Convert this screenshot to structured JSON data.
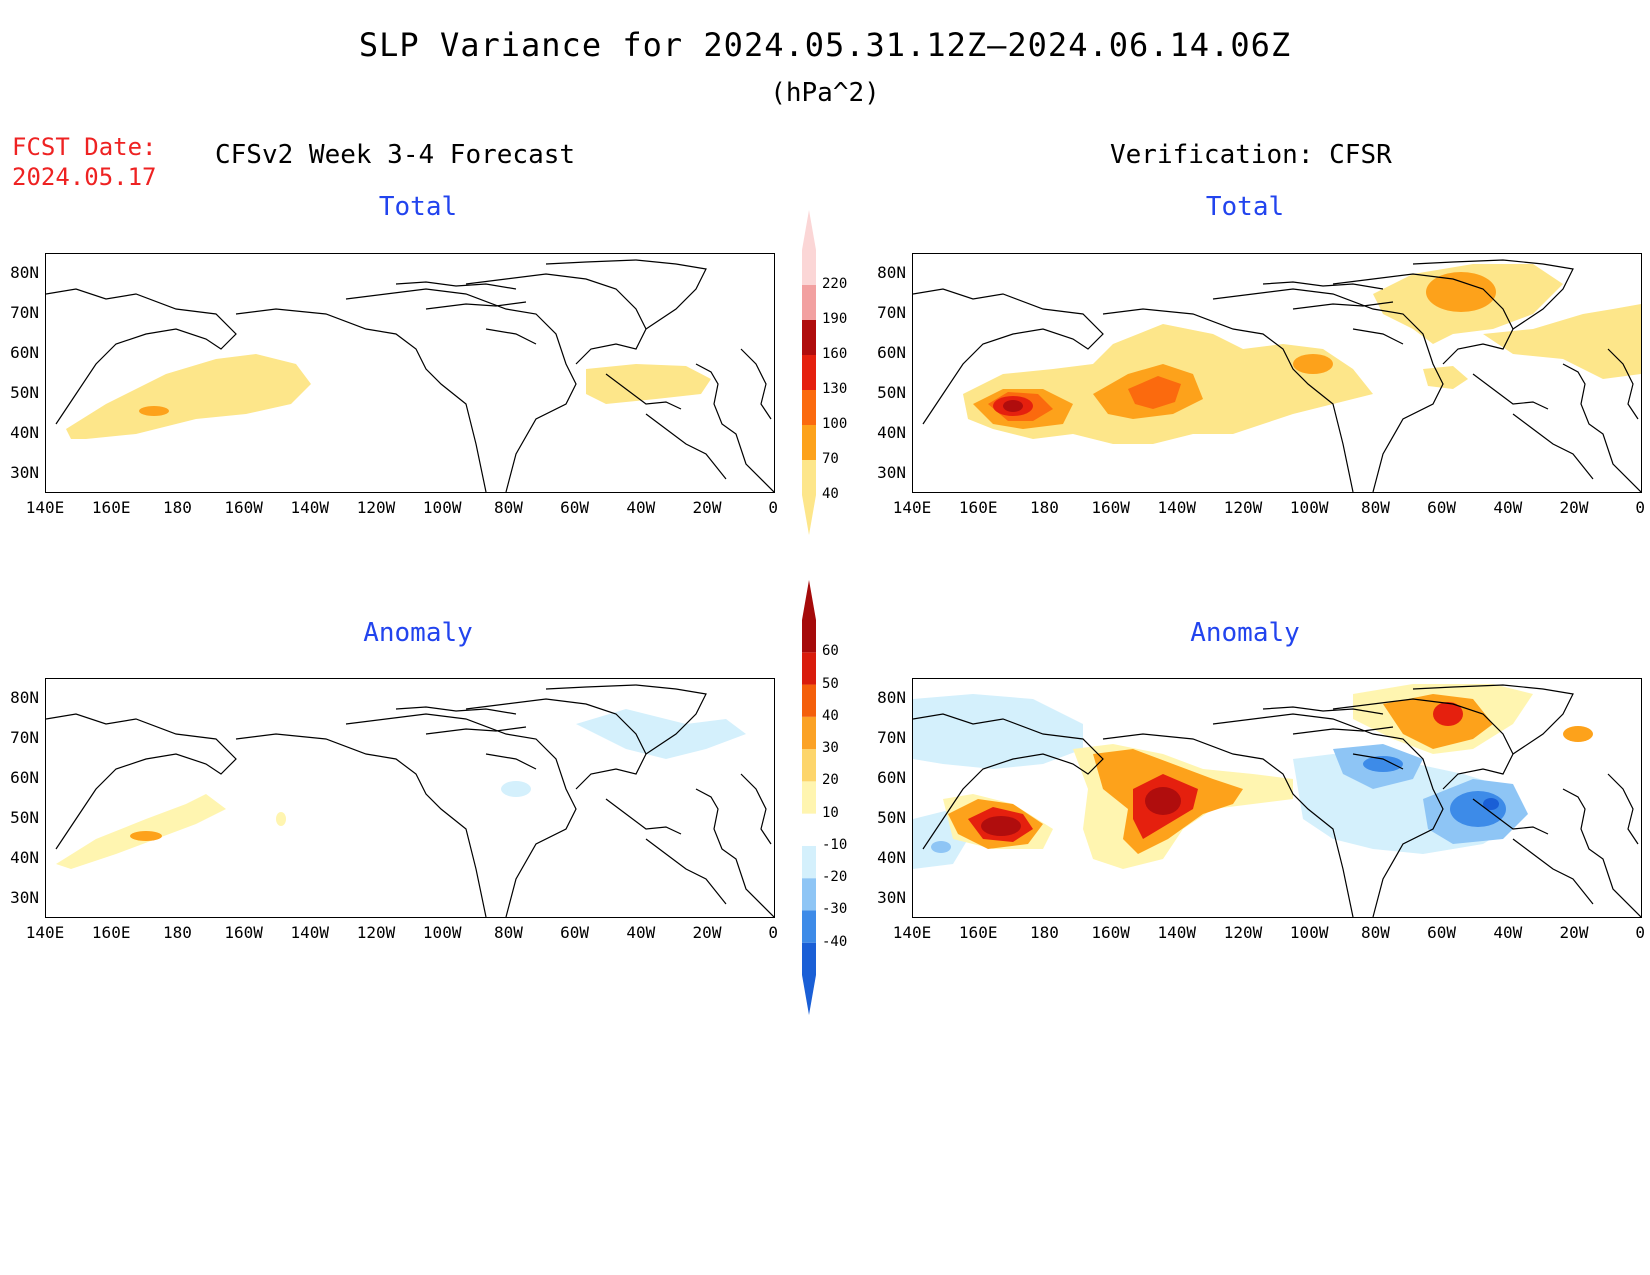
{
  "header": {
    "title": "SLP Variance for 2024.05.31.12Z—2024.06.14.06Z",
    "units": "(hPa^2)",
    "fcst_date_label": "FCST Date:",
    "fcst_date_value": "2024.05.17",
    "left_column_title": "CFSv2 Week 3-4 Forecast",
    "right_column_title": "Verification: CFSR"
  },
  "panels": {
    "top_left_title": "Total",
    "top_right_title": "Total",
    "bottom_left_title": "Anomaly",
    "bottom_right_title": "Anomaly"
  },
  "axes": {
    "lon_labels": [
      "140E",
      "160E",
      "180",
      "160W",
      "140W",
      "120W",
      "100W",
      "80W",
      "60W",
      "40W",
      "20W",
      "0"
    ],
    "lat_labels": [
      "80N",
      "70N",
      "60N",
      "50N",
      "40N",
      "30N"
    ]
  },
  "colorbars": {
    "total": {
      "labels": [
        "40",
        "70",
        "100",
        "130",
        "160",
        "190",
        "220"
      ],
      "colors": [
        "#fde68a",
        "#fda21b",
        "#fb6a0e",
        "#e5200e",
        "#b00d0d",
        "#f2a0a0",
        "#fbd6d6"
      ]
    },
    "anomaly": {
      "labels": [
        "-40",
        "-30",
        "-20",
        "-10",
        "10",
        "20",
        "30",
        "40",
        "50",
        "60"
      ],
      "colors": [
        "#1a5fd6",
        "#3d8be8",
        "#8ec5f5",
        "#d4f0fc",
        "#ffffff",
        "#fff5b0",
        "#fdd56b",
        "#fba226",
        "#f45f0b",
        "#d91c0c",
        "#a50a0a"
      ]
    }
  },
  "map_colors": {
    "yellow": "#fde68a",
    "orange": "#fda21b",
    "dark_orange": "#fb6a0e",
    "red": "#e5200e",
    "dark_red": "#b00d0d",
    "pale_yellow": "#fff5b0",
    "light_cyan": "#d4f0fc",
    "light_blue": "#8ec5f5",
    "blue": "#3d8be8",
    "dark_blue": "#1a5fd6"
  }
}
